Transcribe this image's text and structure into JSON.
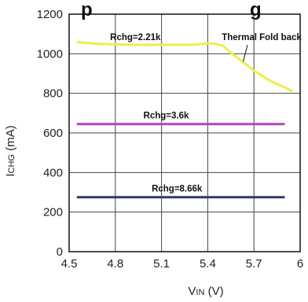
{
  "title_fragment": "p",
  "title_fragment_2": "g",
  "chart_data": {
    "type": "line",
    "xlabel_main": "V",
    "xlabel_sub": "IN",
    "xlabel_unit": " (V)",
    "ylabel_main": "I",
    "ylabel_sub": "CHG",
    "ylabel_unit": " (mA)",
    "xlim": [
      4.5,
      6.0
    ],
    "ylim": [
      0,
      1200
    ],
    "xticks": [
      "4.5",
      "4.8",
      "5.1",
      "5.4",
      "5.7",
      "6"
    ],
    "yticks": [
      "0",
      "200",
      "400",
      "600",
      "800",
      "1000",
      "1200"
    ],
    "grid": true,
    "series": [
      {
        "name": "Rchg=2.21k",
        "color": "#eeee4a",
        "x": [
          4.55,
          4.6,
          4.7,
          4.8,
          4.9,
          5.0,
          5.1,
          5.2,
          5.3,
          5.4,
          5.45,
          5.5,
          5.55,
          5.6,
          5.7,
          5.8,
          5.9,
          5.95
        ],
        "y": [
          1060,
          1055,
          1050,
          1047,
          1045,
          1045,
          1045,
          1045,
          1045,
          1052,
          1050,
          1040,
          1005,
          975,
          915,
          865,
          830,
          810
        ]
      },
      {
        "name": "Rchg=3.6k",
        "color": "#b048b8",
        "x": [
          4.55,
          5.9
        ],
        "y": [
          645,
          645
        ]
      },
      {
        "name": "Rchg=8.66k",
        "color": "#2e3a63",
        "x": [
          4.55,
          5.9
        ],
        "y": [
          275,
          275
        ]
      }
    ],
    "annotations": [
      {
        "text": "Rchg=2.21k",
        "x": 4.93,
        "y": 1085
      },
      {
        "text": "Rchg=3.6k",
        "x": 5.13,
        "y": 690
      },
      {
        "text": "Rchg=8.66k",
        "x": 5.2,
        "y": 320
      },
      {
        "text": "Thermal Fold back",
        "x": 5.75,
        "y": 1085,
        "arrow_to": [
          5.63,
          960
        ]
      }
    ]
  }
}
